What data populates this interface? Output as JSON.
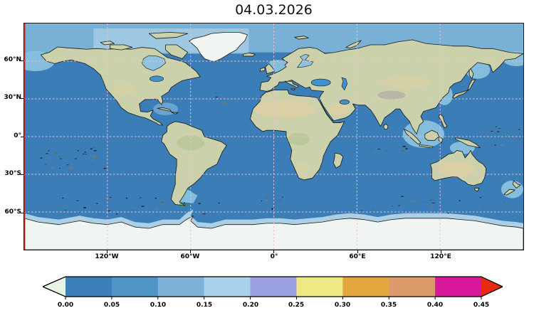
{
  "title": "04.03.2026",
  "axes": {
    "lat_ticks": [
      {
        "label": "60°N"
      },
      {
        "label": "30°N"
      },
      {
        "label": "0°"
      },
      {
        "label": "30°S"
      },
      {
        "label": "60°S"
      }
    ],
    "lon_ticks": [
      {
        "label": "120°W"
      },
      {
        "label": "60°W"
      },
      {
        "label": "0°"
      },
      {
        "label": "60°E"
      },
      {
        "label": "120°E"
      }
    ]
  },
  "colorbar": {
    "tick_labels": [
      "0.00",
      "0.05",
      "0.10",
      "0.15",
      "0.20",
      "0.25",
      "0.30",
      "0.35",
      "0.40",
      "0.45"
    ],
    "segment_colors": [
      "#3b7eb8",
      "#4f95c6",
      "#7fb2d9",
      "#abd2ec",
      "#9aa0e2",
      "#efe985",
      "#e3a53e",
      "#dd9a6b",
      "#d8189b"
    ],
    "under_arrow_color": "#e6f4e1",
    "over_arrow_color": "#ea2b13"
  },
  "map": {
    "colors": {
      "ocean": "#3a7db7",
      "shelf": "#8ec4e0",
      "arctic": "#79b0d5",
      "polar_fringe": "#abd0e5",
      "inland_sea": "#4190cf",
      "land": "#cbd2ab",
      "desert": "#decfa3",
      "mountain": "#b7b2a6",
      "tropics": "#b3c491",
      "ice": "#f1f5f1",
      "coast": "#1a1a14",
      "grid": "#f2bfd4"
    },
    "contour_label": {
      "text": "0.10",
      "color": "#2f8f3c"
    },
    "edge_line_color": "#d42a1e"
  },
  "chart_data": {
    "type": "heatmap",
    "title": "04.03.2026",
    "projection": "equirectangular world map",
    "lat_ticks": [
      "60°N",
      "30°N",
      "0°",
      "30°S",
      "60°S"
    ],
    "lon_ticks": [
      "120°W",
      "60°W",
      "0°",
      "60°E",
      "120°E"
    ],
    "colorbar_ticks": [
      0.0,
      0.05,
      0.1,
      0.15,
      0.2,
      0.25,
      0.3,
      0.35,
      0.4,
      0.45
    ],
    "colorbar_extend": "both",
    "legend_position": "bottom"
  }
}
